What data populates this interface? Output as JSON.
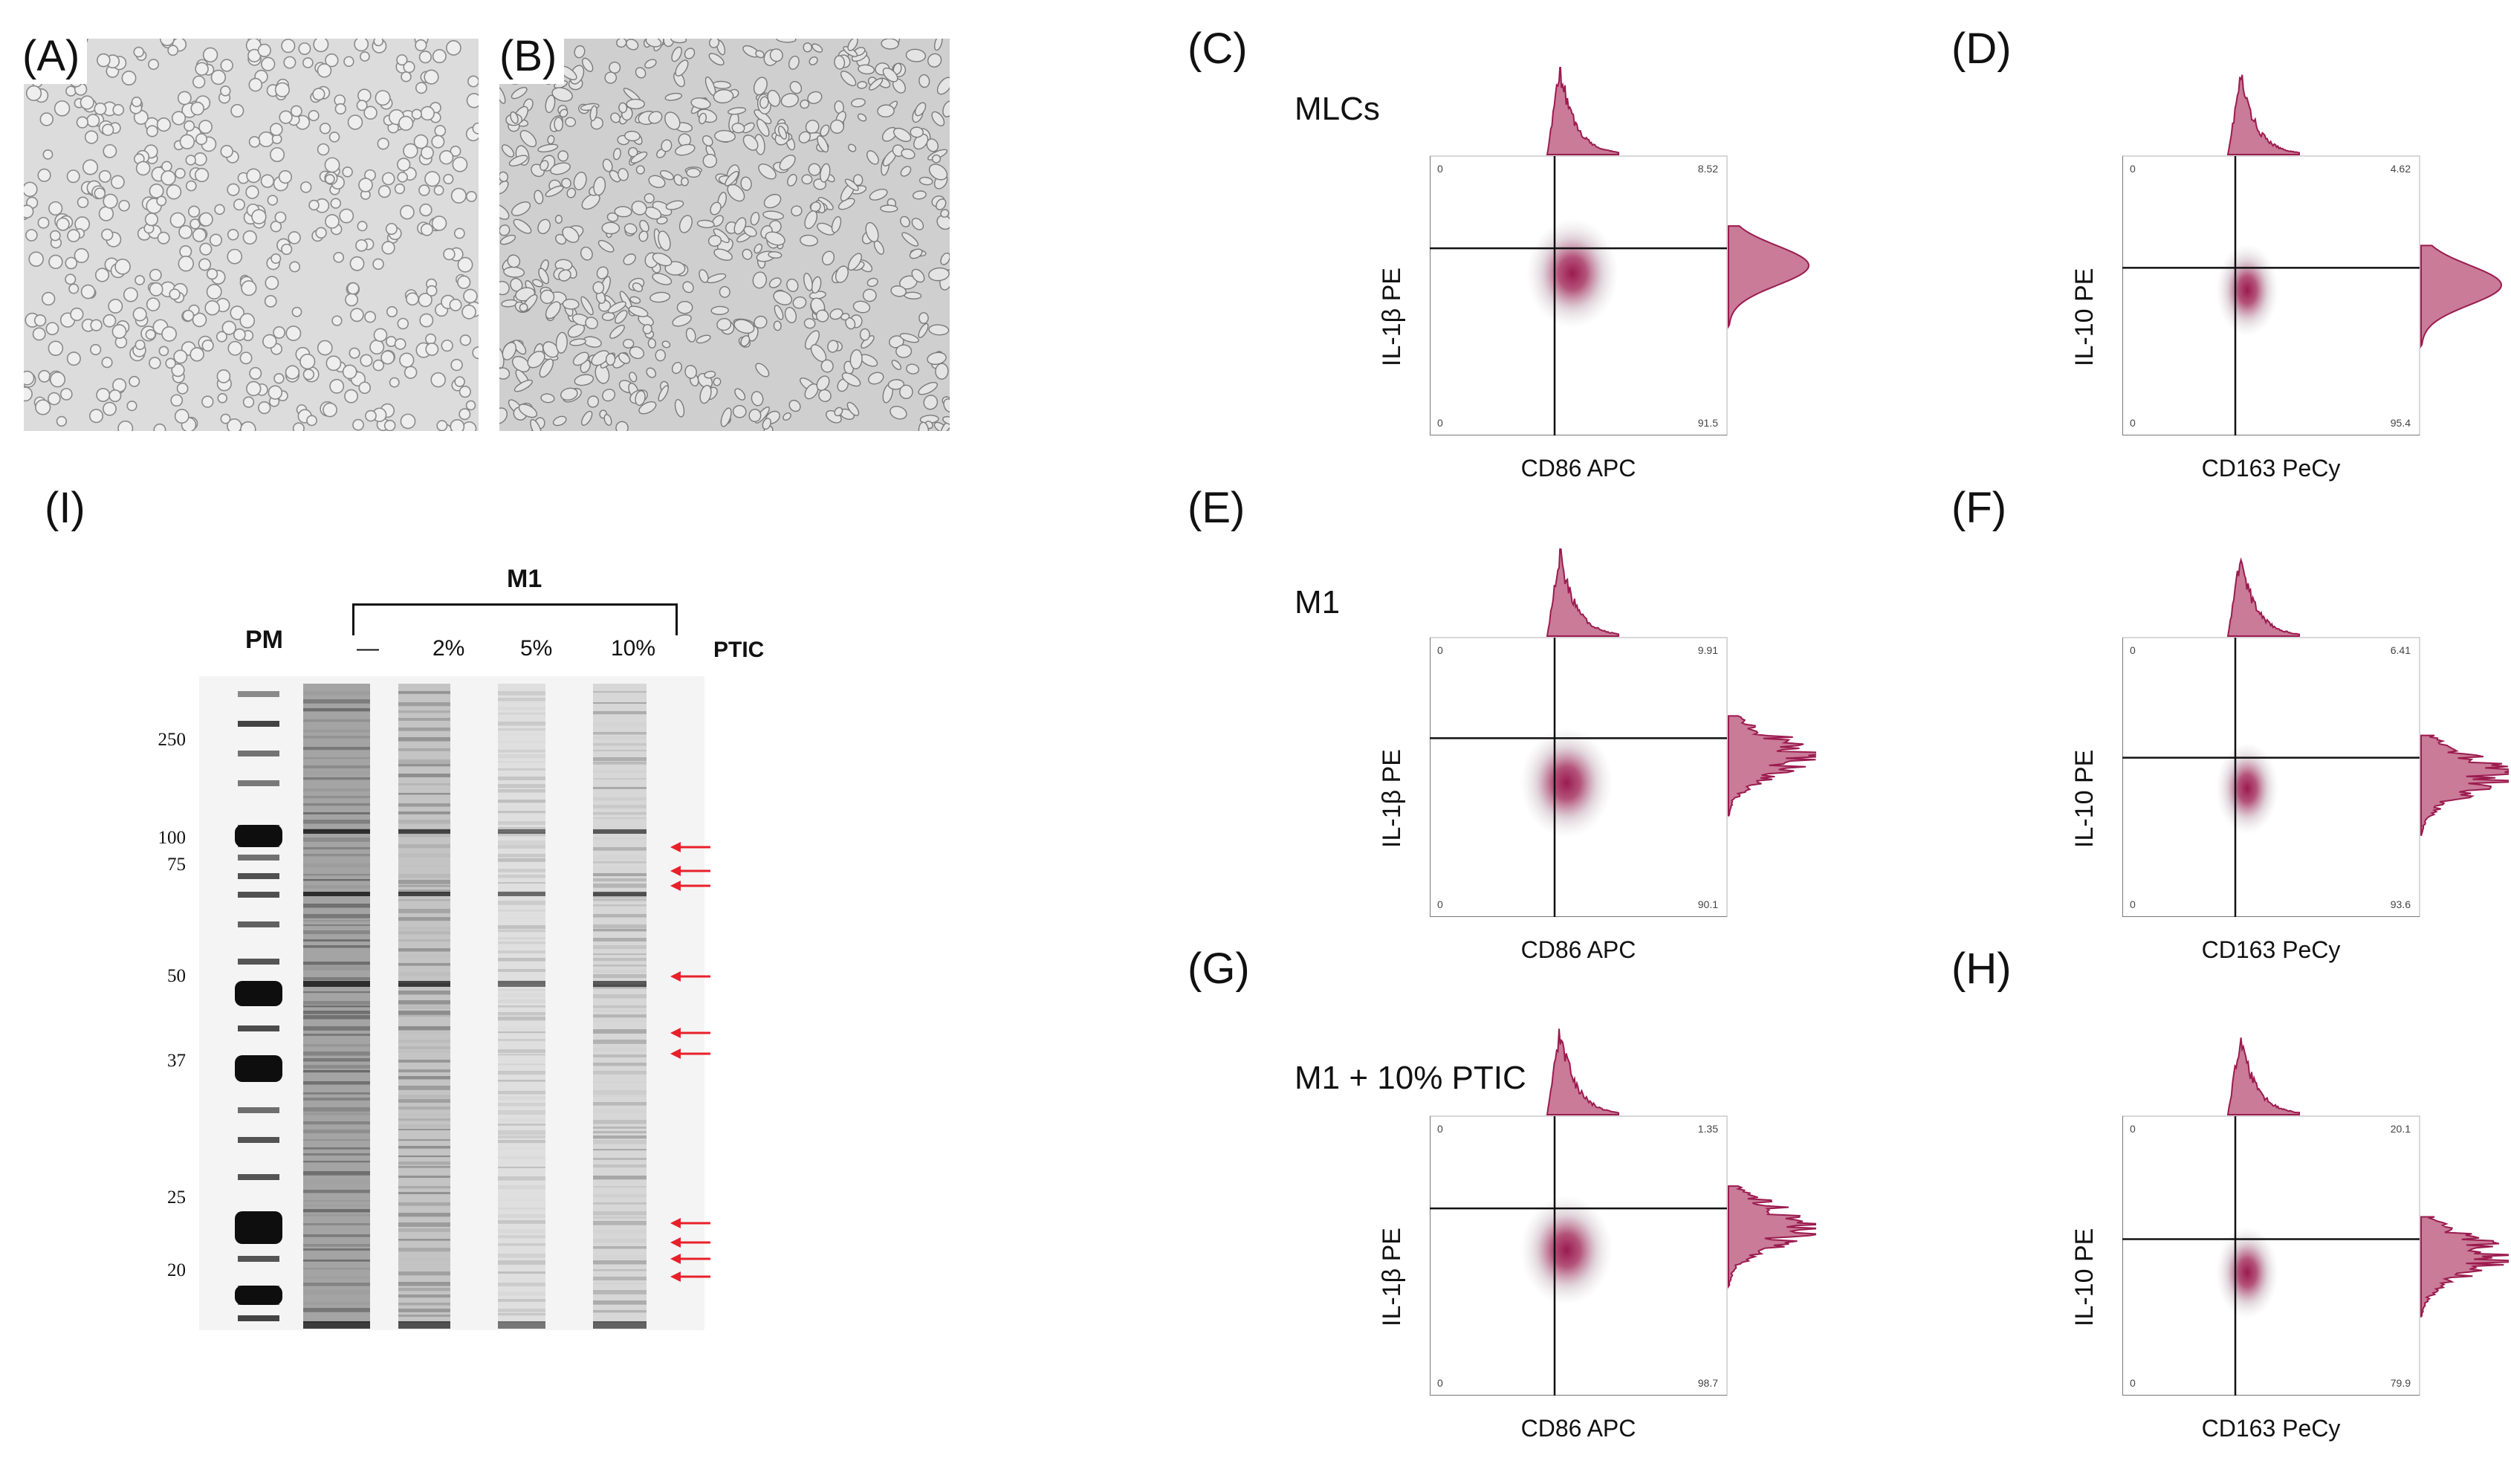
{
  "panels": {
    "A": {
      "letter": "(A)"
    },
    "B": {
      "letter": "(B)"
    },
    "C": {
      "letter": "(C)",
      "condition": "MLCs",
      "xlabel": "CD86 APC",
      "ylabel": "IL-1β PE",
      "q_tl": "0",
      "q_tr": "8.52",
      "q_bl": "0",
      "q_br": "91.5"
    },
    "D": {
      "letter": "(D)",
      "condition": "",
      "xlabel": "CD163 PeCy",
      "ylabel": "IL-10 PE",
      "q_tl": "0",
      "q_tr": "4.62",
      "q_bl": "0",
      "q_br": "95.4"
    },
    "E": {
      "letter": "(E)",
      "condition": "M1",
      "xlabel": "CD86 APC",
      "ylabel": "IL-1β PE",
      "q_tl": "0",
      "q_tr": "9.91",
      "q_bl": "0",
      "q_br": "90.1"
    },
    "F": {
      "letter": "(F)",
      "condition": "",
      "xlabel": "CD163 PeCy",
      "ylabel": "IL-10 PE",
      "q_tl": "0",
      "q_tr": "6.41",
      "q_bl": "0",
      "q_br": "93.6"
    },
    "G": {
      "letter": "(G)",
      "condition": "M1 + 10% PTIC",
      "xlabel": "CD86 APC",
      "ylabel": "IL-1β PE",
      "q_tl": "0",
      "q_tr": "1.35",
      "q_bl": "0",
      "q_br": "98.7"
    },
    "H": {
      "letter": "(H)",
      "condition": "",
      "xlabel": "CD163 PeCy",
      "ylabel": "IL-10 PE",
      "q_tl": "0",
      "q_tr": "20.1",
      "q_bl": "0",
      "q_br": "79.9"
    },
    "I": {
      "letter": "(I)"
    }
  },
  "gel": {
    "group_label": "M1",
    "marker_label": "PM",
    "lanes": [
      "—",
      "2%",
      "5%",
      "10%"
    ],
    "treatment_label": "PTIC",
    "mw_markers": [
      "250",
      "100",
      "75",
      "50",
      "37",
      "25",
      "20"
    ]
  },
  "colors": {
    "flow_accent": "#9b1b4f",
    "flow_hist_fill": "#c97b97",
    "arrow": "#e8202a"
  }
}
